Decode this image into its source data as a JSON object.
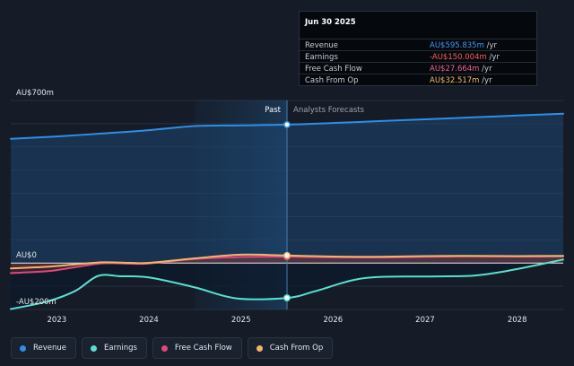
{
  "chart_data": {
    "type": "line",
    "title": "",
    "x_axis": {
      "range": [
        2022.5,
        2028.5
      ],
      "ticks": [
        "2023",
        "2024",
        "2025",
        "2026",
        "2027",
        "2028"
      ]
    },
    "y_axis": {
      "range": [
        -200,
        700
      ],
      "labels": {
        "top": "AU$700m",
        "zero": "AU$0",
        "bottom": "-AU$200m"
      }
    },
    "past_label": "Past",
    "forecast_label": "Analysts Forecasts",
    "highlight_range": [
      2024.5,
      2025.5
    ],
    "divider_x": 2025.5,
    "series": [
      {
        "name": "Revenue",
        "color": "#2f8ee6",
        "points": [
          [
            2022.5,
            535
          ],
          [
            2023.0,
            545
          ],
          [
            2023.5,
            558
          ],
          [
            2024.0,
            572
          ],
          [
            2024.5,
            590
          ],
          [
            2025.0,
            593
          ],
          [
            2025.5,
            596
          ],
          [
            2026.0,
            603
          ],
          [
            2026.5,
            611
          ],
          [
            2027.0,
            619
          ],
          [
            2027.5,
            627
          ],
          [
            2028.0,
            635
          ],
          [
            2028.5,
            643
          ]
        ]
      },
      {
        "name": "Earnings",
        "color": "#59e0d0",
        "points": [
          [
            2022.5,
            -198
          ],
          [
            2022.9,
            -165
          ],
          [
            2023.2,
            -120
          ],
          [
            2023.45,
            -55
          ],
          [
            2023.7,
            -57
          ],
          [
            2024.0,
            -62
          ],
          [
            2024.5,
            -105
          ],
          [
            2024.95,
            -152
          ],
          [
            2025.5,
            -150
          ],
          [
            2025.8,
            -122
          ],
          [
            2026.2,
            -75
          ],
          [
            2026.5,
            -60
          ],
          [
            2027.0,
            -58
          ],
          [
            2027.5,
            -55
          ],
          [
            2027.8,
            -40
          ],
          [
            2028.1,
            -18
          ],
          [
            2028.5,
            15
          ]
        ]
      },
      {
        "name": "Free Cash Flow",
        "color": "#e0487a",
        "points": [
          [
            2022.5,
            -43
          ],
          [
            2022.9,
            -35
          ],
          [
            2023.2,
            -18
          ],
          [
            2023.5,
            -1
          ],
          [
            2023.8,
            -3
          ],
          [
            2024.0,
            -2
          ],
          [
            2024.5,
            18
          ],
          [
            2025.0,
            26
          ],
          [
            2025.5,
            27.7
          ],
          [
            2026.0,
            25
          ],
          [
            2026.5,
            24
          ],
          [
            2027.0,
            27
          ],
          [
            2027.5,
            29
          ],
          [
            2028.0,
            28
          ],
          [
            2028.5,
            29
          ]
        ]
      },
      {
        "name": "Cash From Op",
        "color": "#f2b56b",
        "points": [
          [
            2022.5,
            -23
          ],
          [
            2022.9,
            -16
          ],
          [
            2023.2,
            -6
          ],
          [
            2023.5,
            3
          ],
          [
            2023.8,
            1
          ],
          [
            2024.0,
            1
          ],
          [
            2024.5,
            20
          ],
          [
            2025.0,
            36
          ],
          [
            2025.5,
            32.5
          ],
          [
            2026.0,
            28
          ],
          [
            2026.5,
            27
          ],
          [
            2027.0,
            30
          ],
          [
            2027.5,
            31
          ],
          [
            2028.0,
            30
          ],
          [
            2028.5,
            31
          ]
        ]
      }
    ]
  },
  "tooltip": {
    "date": "Jun 30 2025",
    "rows": [
      {
        "label": "Revenue",
        "value": "AU$595.835m",
        "unit": "/yr",
        "color": "#3d9bf0"
      },
      {
        "label": "Earnings",
        "value": "-AU$150.004m",
        "unit": "/yr",
        "color": "#ff5a5a"
      },
      {
        "label": "Free Cash Flow",
        "value": "AU$27.664m",
        "unit": "/yr",
        "color": "#ef6096"
      },
      {
        "label": "Cash From Op",
        "value": "AU$32.517m",
        "unit": "/yr",
        "color": "#f6b86c"
      }
    ]
  },
  "legend": [
    {
      "label": "Revenue",
      "color": "#2f8ee6"
    },
    {
      "label": "Earnings",
      "color": "#59e0d0"
    },
    {
      "label": "Free Cash Flow",
      "color": "#e0487a"
    },
    {
      "label": "Cash From Op",
      "color": "#f2b56b"
    }
  ]
}
